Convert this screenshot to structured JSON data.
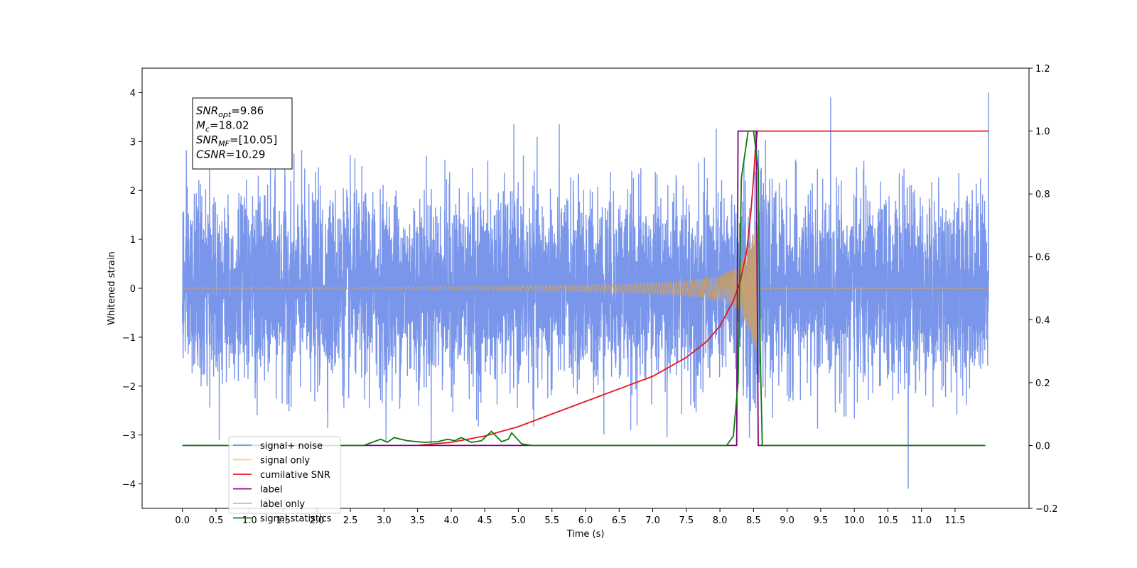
{
  "chart_data": {
    "type": "line",
    "title": "",
    "xlabel": "Time (s)",
    "ylabel": "Whitened strain",
    "y2label": "",
    "xlim": [
      -0.6,
      12.6
    ],
    "ylim": [
      -4.5,
      4.5
    ],
    "y2lim": [
      -0.2,
      1.2
    ],
    "x_ticks": [
      0.0,
      0.5,
      1.0,
      1.5,
      2.0,
      2.5,
      3.0,
      3.5,
      4.0,
      4.5,
      5.0,
      5.5,
      6.0,
      6.5,
      7.0,
      7.5,
      8.0,
      8.5,
      9.0,
      9.5,
      10.0,
      10.5,
      11.0,
      11.5
    ],
    "x_tick_labels": [
      "0.0",
      "0.5",
      "1.0",
      "1.5",
      "2.0",
      "2.5",
      "3.0",
      "3.5",
      "4.0",
      "4.5",
      "5.0",
      "5.5",
      "6.0",
      "6.5",
      "7.0",
      "7.5",
      "8.0",
      "8.5",
      "9.0",
      "9.5",
      "10.0",
      "10.5",
      "11.0",
      "11.5"
    ],
    "y_ticks": [
      -4,
      -3,
      -2,
      -1,
      0,
      1,
      2,
      3,
      4
    ],
    "y_tick_labels": [
      "−4",
      "−3",
      "−2",
      "−1",
      "0",
      "1",
      "2",
      "3",
      "4"
    ],
    "y2_ticks": [
      -0.2,
      0.0,
      0.2,
      0.4,
      0.6,
      0.8,
      1.0,
      1.2
    ],
    "y2_tick_labels": [
      "−0.2",
      "0.0",
      "0.2",
      "0.4",
      "0.6",
      "0.8",
      "1.0",
      "1.2"
    ],
    "grid": false,
    "legend_position": "lower-left",
    "annotation": {
      "lines": [
        {
          "base": "SNR",
          "sub": "opt",
          "value": "=9.86"
        },
        {
          "base": "M",
          "sub": "c",
          "value": "=18.02"
        },
        {
          "base": "SNR",
          "sub": "MF",
          "value": "=[10.05]"
        },
        {
          "base": "CSNR",
          "sub": "",
          "value": "=10.29"
        }
      ]
    },
    "series": [
      {
        "name": "signal+ noise",
        "color": "#4169e1",
        "alpha": 0.7,
        "axis": "left",
        "x_range": [
          0.0,
          12.0
        ],
        "approx_envelope": [
          -2.6,
          2.6
        ],
        "approx_extremes": {
          "max": 4.0,
          "min": -4.1
        }
      },
      {
        "name": "signal only",
        "color": "#f5a623",
        "alpha": 0.6,
        "axis": "left",
        "type": "chirp",
        "x_range": [
          0.0,
          12.0
        ],
        "merger_time": 8.56,
        "amplitude_points": [
          [
            0.0,
            0.01
          ],
          [
            3.0,
            0.02
          ],
          [
            5.0,
            0.05
          ],
          [
            6.5,
            0.08
          ],
          [
            7.5,
            0.15
          ],
          [
            8.0,
            0.25
          ],
          [
            8.3,
            0.45
          ],
          [
            8.45,
            0.9
          ],
          [
            8.55,
            1.3
          ]
        ],
        "frequency_points": [
          [
            0.0,
            12
          ],
          [
            3.0,
            14
          ],
          [
            5.0,
            17
          ],
          [
            7.0,
            22
          ],
          [
            8.0,
            30
          ],
          [
            8.4,
            45
          ],
          [
            8.55,
            60
          ]
        ]
      },
      {
        "name": "cumilative SNR",
        "color": "#e8141e",
        "axis": "right",
        "points": [
          [
            3.5,
            0.0
          ],
          [
            4.0,
            0.01
          ],
          [
            4.5,
            0.03
          ],
          [
            5.0,
            0.06
          ],
          [
            5.5,
            0.1
          ],
          [
            6.0,
            0.14
          ],
          [
            6.5,
            0.18
          ],
          [
            7.0,
            0.22
          ],
          [
            7.5,
            0.28
          ],
          [
            7.8,
            0.33
          ],
          [
            8.0,
            0.38
          ],
          [
            8.2,
            0.46
          ],
          [
            8.3,
            0.52
          ],
          [
            8.4,
            0.62
          ],
          [
            8.46,
            0.74
          ],
          [
            8.5,
            0.85
          ],
          [
            8.53,
            0.95
          ],
          [
            8.56,
            1.0
          ],
          [
            12.0,
            1.0
          ]
        ]
      },
      {
        "name": "label",
        "color": "#800080",
        "axis": "right",
        "points": [
          [
            0.0,
            0.0
          ],
          [
            8.25,
            0.0
          ],
          [
            8.27,
            1.0
          ],
          [
            8.54,
            1.0
          ],
          [
            8.57,
            0.0
          ],
          [
            11.95,
            0.0
          ]
        ]
      },
      {
        "name": "label only",
        "color": "#bbbbbb",
        "axis": "right",
        "points": []
      },
      {
        "name": "signal statistics",
        "color": "#0a7d0a",
        "axis": "right",
        "points": [
          [
            0.0,
            0.0
          ],
          [
            2.7,
            0.0
          ],
          [
            2.95,
            0.02
          ],
          [
            3.05,
            0.01
          ],
          [
            3.15,
            0.025
          ],
          [
            3.35,
            0.015
          ],
          [
            3.6,
            0.01
          ],
          [
            3.8,
            0.012
          ],
          [
            3.95,
            0.02
          ],
          [
            4.05,
            0.015
          ],
          [
            4.15,
            0.025
          ],
          [
            4.3,
            0.01
          ],
          [
            4.45,
            0.015
          ],
          [
            4.6,
            0.045
          ],
          [
            4.75,
            0.012
          ],
          [
            4.85,
            0.02
          ],
          [
            4.9,
            0.04
          ],
          [
            5.05,
            0.005
          ],
          [
            5.2,
            0.0
          ],
          [
            8.1,
            0.0
          ],
          [
            8.2,
            0.03
          ],
          [
            8.27,
            0.2
          ],
          [
            8.32,
            0.85
          ],
          [
            8.42,
            1.0
          ],
          [
            8.5,
            1.0
          ],
          [
            8.57,
            0.88
          ],
          [
            8.6,
            0.3
          ],
          [
            8.63,
            0.0
          ],
          [
            11.95,
            0.0
          ]
        ]
      }
    ]
  }
}
